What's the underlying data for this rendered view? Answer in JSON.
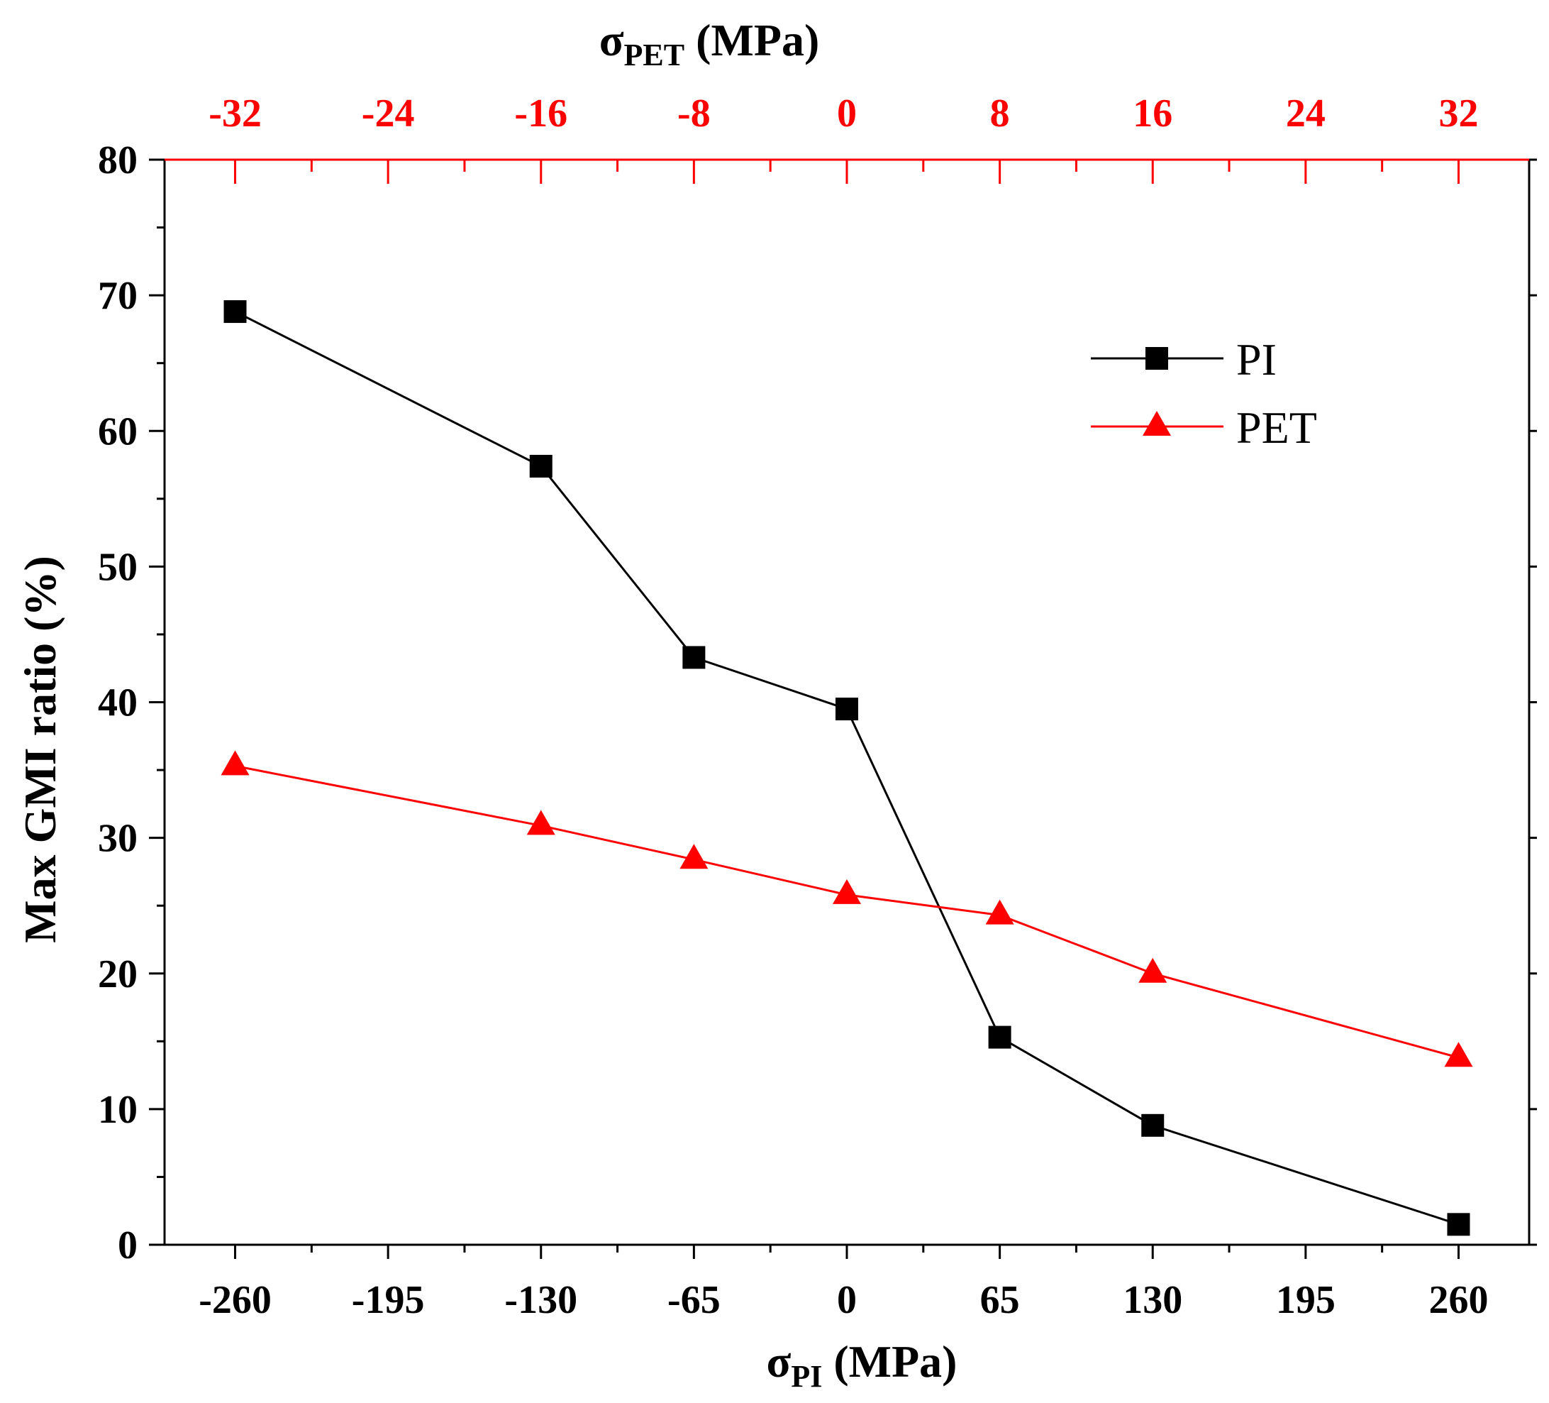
{
  "chart_data": {
    "type": "line",
    "title": "",
    "ylabel": "Max GMI ratio (%)",
    "ylim": [
      0,
      80
    ],
    "yticks": [
      0,
      10,
      20,
      30,
      40,
      50,
      60,
      70,
      80
    ],
    "y_minor_step": 5,
    "bottom_axis": {
      "label_main": "σ",
      "label_sub": "PI",
      "label_unit": " (MPa)",
      "xlim": [
        -290,
        290
      ],
      "ticks": [
        -260,
        -195,
        -130,
        -65,
        0,
        65,
        130,
        195,
        260
      ],
      "tick_labels": [
        "-260",
        "-195",
        "-130",
        "-65",
        "0",
        "65",
        "130",
        "195",
        "260"
      ],
      "minor_step": 32.5
    },
    "top_axis": {
      "label_main": "σ",
      "label_sub": "PET",
      "label_unit": " (MPa)",
      "xlim": [
        -35.6923,
        35.6923
      ],
      "ticks": [
        -32,
        -24,
        -16,
        -8,
        0,
        8,
        16,
        24,
        32
      ],
      "tick_labels": [
        "-32",
        "-24",
        "-16",
        "-8",
        "0",
        "8",
        "16",
        "24",
        "32"
      ],
      "minor_step": 4,
      "color": "#ff0000"
    },
    "series": [
      {
        "name": "PI",
        "axis": "bottom",
        "color": "#000000",
        "marker": "square",
        "x": [
          -260,
          -130,
          -65,
          0,
          65,
          130,
          260
        ],
        "y": [
          68.8,
          57.4,
          43.3,
          39.5,
          15.3,
          8.8,
          1.5
        ]
      },
      {
        "name": "PET",
        "axis": "top",
        "color": "#ff0000",
        "marker": "triangle",
        "x": [
          -32,
          -16,
          -8,
          0,
          8,
          16,
          32
        ],
        "y": [
          35.3,
          30.9,
          28.4,
          25.8,
          24.3,
          20.0,
          13.8
        ]
      }
    ],
    "legend": {
      "position": "top-right"
    },
    "grid": false
  }
}
